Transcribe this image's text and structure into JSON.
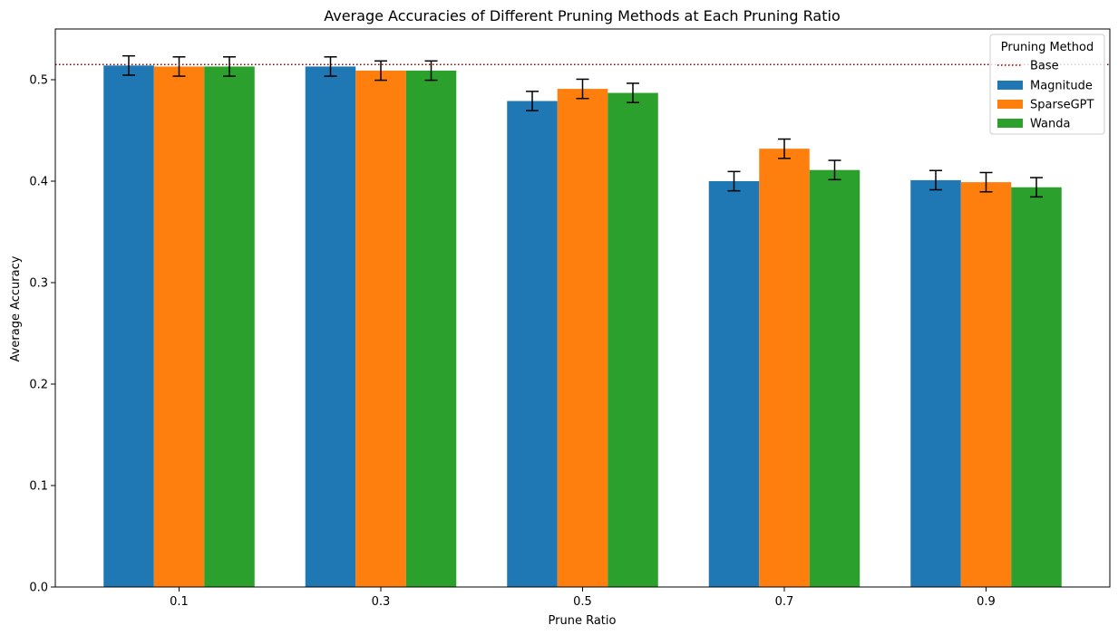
{
  "chart_data": {
    "type": "bar",
    "title": "Average Accuracies of Different Pruning Methods at Each Pruning Ratio",
    "xlabel": "Prune Ratio",
    "ylabel": "Average Accuracy",
    "categories": [
      "0.1",
      "0.3",
      "0.5",
      "0.7",
      "0.9"
    ],
    "ylim": [
      0,
      0.55
    ],
    "yticks": [
      0.0,
      0.1,
      0.2,
      0.3,
      0.4,
      0.5
    ],
    "ytick_labels": [
      "0.0",
      "0.1",
      "0.2",
      "0.3",
      "0.4",
      "0.5"
    ],
    "baseline": {
      "name": "Base",
      "value": 0.515,
      "color": "#8b0000",
      "style": "dotted"
    },
    "series": [
      {
        "name": "Magnitude",
        "color": "#1f77b4",
        "values": [
          0.514,
          0.513,
          0.479,
          0.4,
          0.401
        ],
        "errors": [
          0.0095,
          0.0095,
          0.0095,
          0.0095,
          0.0095
        ]
      },
      {
        "name": "SparseGPT",
        "color": "#ff7f0e",
        "values": [
          0.513,
          0.509,
          0.491,
          0.432,
          0.399
        ],
        "errors": [
          0.0095,
          0.0095,
          0.0095,
          0.0095,
          0.0095
        ]
      },
      {
        "name": "Wanda",
        "color": "#2ca02c",
        "values": [
          0.513,
          0.509,
          0.487,
          0.411,
          0.394
        ],
        "errors": [
          0.0095,
          0.0095,
          0.0095,
          0.0095,
          0.0095
        ]
      }
    ],
    "legend": {
      "title": "Pruning Method",
      "placement": "top-right"
    },
    "grid": false
  }
}
